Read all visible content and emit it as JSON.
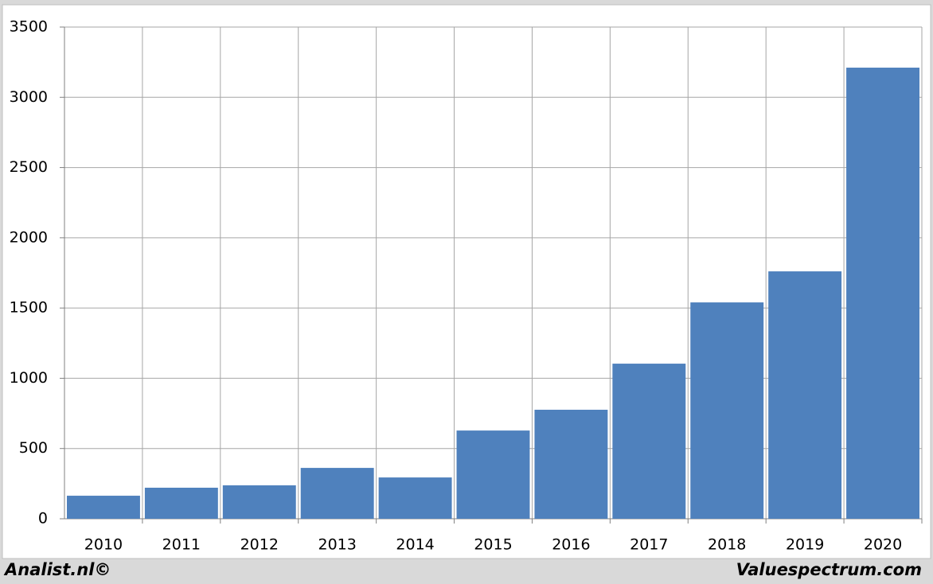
{
  "chart_data": {
    "type": "bar",
    "categories": [
      "2010",
      "2011",
      "2012",
      "2013",
      "2014",
      "2015",
      "2016",
      "2017",
      "2018",
      "2019",
      "2020"
    ],
    "values": [
      164,
      221,
      238,
      362,
      294,
      628,
      776,
      1104,
      1540,
      1761,
      3211
    ],
    "color": "#4f81bd",
    "ylim": [
      0,
      3500
    ],
    "yticks": [
      0,
      500,
      1000,
      1500,
      2000,
      2500,
      3000,
      3500
    ],
    "grid": true,
    "credits": [
      "Analist.nl©",
      "Valuespectrum.com"
    ]
  }
}
